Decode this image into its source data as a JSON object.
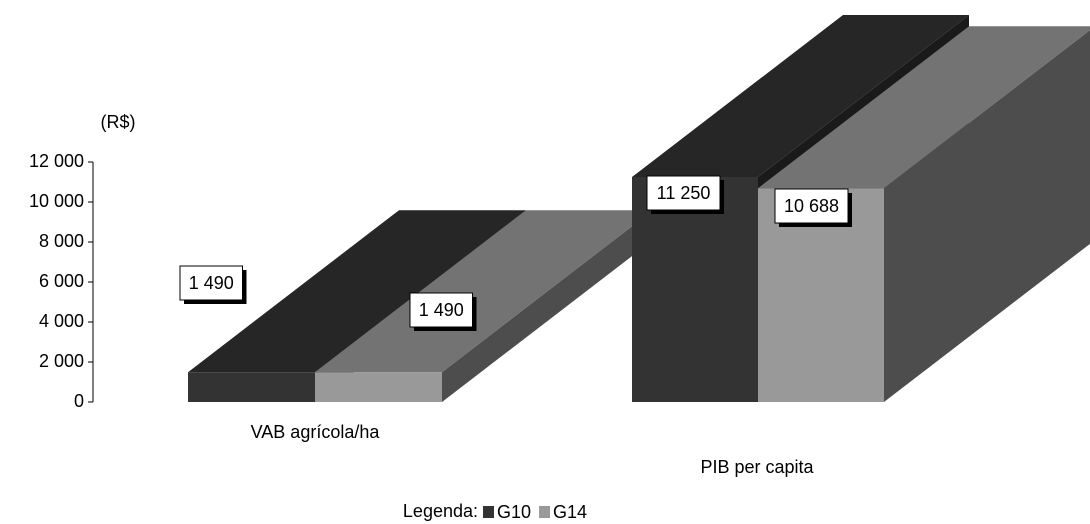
{
  "chart_data": {
    "type": "bar3d",
    "y_label": "(R$)",
    "categories": [
      "VAB agrícola/ha",
      "PIB per capita"
    ],
    "series": [
      {
        "name": "G10",
        "color": "#333333",
        "values": [
          1490,
          11250
        ],
        "value_labels": [
          "1 490",
          "11 250"
        ]
      },
      {
        "name": "G14",
        "color": "#999999",
        "values": [
          1490,
          10688
        ],
        "value_labels": [
          "1 490",
          "10 688"
        ]
      }
    ],
    "ylim": [
      0,
      12000
    ],
    "yticks": [
      0,
      {
        "value": 2000,
        "label": "2 000"
      },
      {
        "value": 4000,
        "label": "4 000"
      },
      {
        "value": 6000,
        "label": "6 000"
      },
      {
        "value": 8000,
        "label": "8 000"
      },
      {
        "value": 10000,
        "label": "10 000"
      },
      {
        "value": 12000,
        "label": "12 000"
      }
    ],
    "legend_title": "Legenda:"
  }
}
